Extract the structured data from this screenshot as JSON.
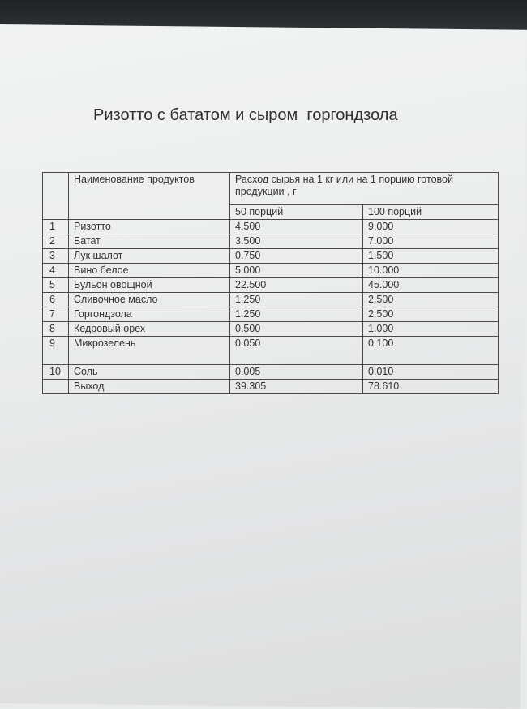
{
  "title": "Ризотто с бататом и сыром  горгондзола",
  "table": {
    "header_name": "Наименование продуктов",
    "header_consumption": "Расход сырья на 1 кг или на 1 порцию готовой продукции , г",
    "col_50": "50 порций",
    "col_100": "100 порций",
    "rows": [
      {
        "n": "1",
        "name": "Ризотто",
        "v50": "4.500",
        "v100": "9.000"
      },
      {
        "n": "2",
        "name": "Батат",
        "v50": "3.500",
        "v100": "7.000"
      },
      {
        "n": "3",
        "name": "Лук шалот",
        "v50": "0.750",
        "v100": "1.500"
      },
      {
        "n": "4",
        "name": "Вино белое",
        "v50": "5.000",
        "v100": "10.000"
      },
      {
        "n": "5",
        "name": "Бульон овощной",
        "v50": "22.500",
        "v100": "45.000"
      },
      {
        "n": "6",
        "name": "Сливочное масло",
        "v50": "1.250",
        "v100": "2.500"
      },
      {
        "n": "7",
        "name": "Горгондзола",
        "v50": "1.250",
        "v100": "2.500"
      },
      {
        "n": "8",
        "name": "Кедровый орех",
        "v50": "0.500",
        "v100": "1.000"
      },
      {
        "n": "9",
        "name": "Микрозелень",
        "v50": "0.050",
        "v100": "0.100"
      },
      {
        "n": "10",
        "name": "Соль",
        "v50": "0.005",
        "v100": "0.010"
      }
    ],
    "total": {
      "name": "Выход",
      "v50": "39.305",
      "v100": "78.610"
    }
  }
}
